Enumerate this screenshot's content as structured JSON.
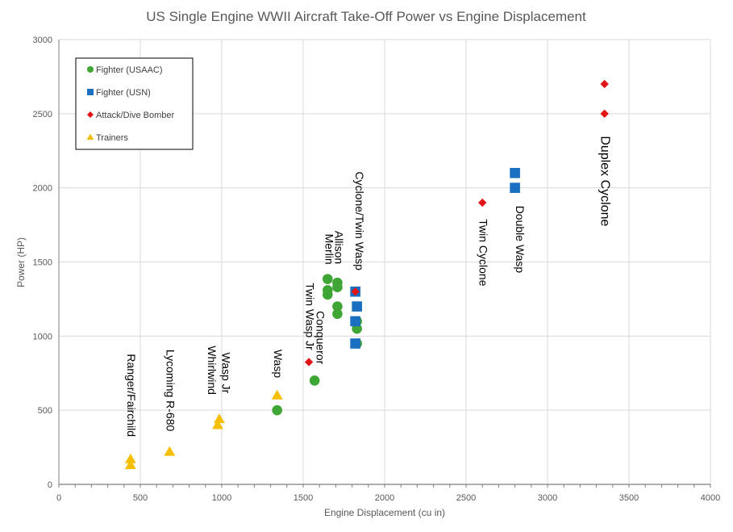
{
  "chart_data": {
    "type": "scatter",
    "title": "US Single Engine WWII Aircraft Take-Off Power vs Engine Displacement",
    "xlabel": "Engine Displacement (cu in)",
    "ylabel": "Power (HP)",
    "xlim": [
      0,
      4000
    ],
    "ylim": [
      0,
      3000
    ],
    "xticks": [
      0,
      500,
      1000,
      1500,
      2000,
      2500,
      3000,
      3500,
      4000
    ],
    "yticks": [
      0,
      500,
      1000,
      1500,
      2000,
      2500,
      3000
    ],
    "grid": true,
    "legend_position": "top-left",
    "series": [
      {
        "name": "Fighter (USAAC)",
        "marker": "circle",
        "color": "#3FA535",
        "points": [
          {
            "x": 1340,
            "y": 500
          },
          {
            "x": 1570,
            "y": 700
          },
          {
            "x": 1650,
            "y": 1385
          },
          {
            "x": 1650,
            "y": 1310
          },
          {
            "x": 1650,
            "y": 1280
          },
          {
            "x": 1710,
            "y": 1360
          },
          {
            "x": 1710,
            "y": 1330
          },
          {
            "x": 1710,
            "y": 1200
          },
          {
            "x": 1710,
            "y": 1150
          },
          {
            "x": 1830,
            "y": 1100
          },
          {
            "x": 1830,
            "y": 1050
          },
          {
            "x": 1830,
            "y": 950
          }
        ]
      },
      {
        "name": "Fighter (USN)",
        "marker": "square",
        "color": "#1A6FC0",
        "points": [
          {
            "x": 1820,
            "y": 1300
          },
          {
            "x": 1830,
            "y": 1200
          },
          {
            "x": 1820,
            "y": 1100
          },
          {
            "x": 1820,
            "y": 950
          },
          {
            "x": 2800,
            "y": 2100
          },
          {
            "x": 2800,
            "y": 2000
          }
        ]
      },
      {
        "name": "Attack/Dive Bomber",
        "marker": "diamond",
        "color": "#E11515",
        "points": [
          {
            "x": 1535,
            "y": 825
          },
          {
            "x": 1820,
            "y": 1300
          },
          {
            "x": 2600,
            "y": 1900
          },
          {
            "x": 3350,
            "y": 2700
          },
          {
            "x": 3350,
            "y": 2500
          }
        ]
      },
      {
        "name": "Trainers",
        "marker": "triangle",
        "color": "#F5BE00",
        "points": [
          {
            "x": 440,
            "y": 170
          },
          {
            "x": 440,
            "y": 130
          },
          {
            "x": 680,
            "y": 220
          },
          {
            "x": 975,
            "y": 400
          },
          {
            "x": 985,
            "y": 440
          },
          {
            "x": 1340,
            "y": 600
          }
        ]
      }
    ],
    "annotations": [
      {
        "text": "Ranger/Fairchild",
        "x": 440,
        "anchor_y": 880,
        "size": "normal"
      },
      {
        "text": "Lycoming R-680",
        "x": 680,
        "anchor_y": 910,
        "size": "normal"
      },
      {
        "text": "Whirlwind",
        "x": 935,
        "anchor_y": 935,
        "size": "normal"
      },
      {
        "text": "Wasp Jr",
        "x": 1020,
        "anchor_y": 890,
        "size": "normal"
      },
      {
        "text": "Wasp",
        "x": 1340,
        "anchor_y": 910,
        "size": "normal"
      },
      {
        "text": "Twin Wasp Jr",
        "x": 1535,
        "anchor_y": 1360,
        "size": "normal"
      },
      {
        "text": "Conqueror",
        "x": 1600,
        "anchor_y": 1170,
        "size": "normal"
      },
      {
        "text": "Merlin",
        "x": 1655,
        "anchor_y": 1690,
        "size": "normal"
      },
      {
        "text": "Allison",
        "x": 1715,
        "anchor_y": 1710,
        "size": "normal"
      },
      {
        "text": "Cyclone/Twin Wasp",
        "x": 1840,
        "anchor_y": 2110,
        "size": "normal"
      },
      {
        "text": "Twin Cyclone",
        "x": 2600,
        "anchor_y": 1790,
        "size": "normal"
      },
      {
        "text": "Double Wasp",
        "x": 2825,
        "anchor_y": 1880,
        "size": "normal"
      },
      {
        "text": "Duplex Cyclone",
        "x": 3350,
        "anchor_y": 2350,
        "size": "large"
      }
    ]
  }
}
